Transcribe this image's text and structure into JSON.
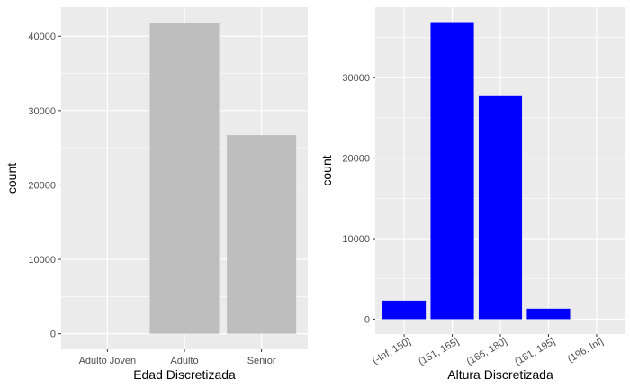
{
  "chart_data": [
    {
      "type": "bar",
      "xlabel": "Edad Discretizada",
      "ylabel": "count",
      "categories": [
        "Adulto Joven",
        "Adulto",
        "Senior"
      ],
      "values": [
        0,
        41800,
        26700
      ],
      "ylim": [
        -2100,
        43900
      ],
      "yticks": [
        0,
        10000,
        20000,
        30000,
        40000
      ],
      "ytick_labels": [
        "0",
        "10000",
        "20000",
        "30000",
        "40000"
      ],
      "bar_color": "#bebebe",
      "panel_background": "#ebebeb",
      "grid": true,
      "xtick_rotation": 0
    },
    {
      "type": "bar",
      "xlabel": "Altura Discretizada",
      "ylabel": "count",
      "categories": [
        "(-Inf, 150]",
        "(151, 165]",
        "(166, 180]",
        "(181, 195]",
        "(196, Inf]"
      ],
      "values": [
        2300,
        36900,
        27700,
        1300,
        0
      ],
      "ylim": [
        -1850,
        38750
      ],
      "yticks": [
        0,
        10000,
        20000,
        30000
      ],
      "ytick_labels": [
        "0",
        "10000",
        "20000",
        "30000"
      ],
      "bar_color": "#0000ff",
      "panel_background": "#ebebeb",
      "grid": true,
      "xtick_rotation": -30
    }
  ]
}
